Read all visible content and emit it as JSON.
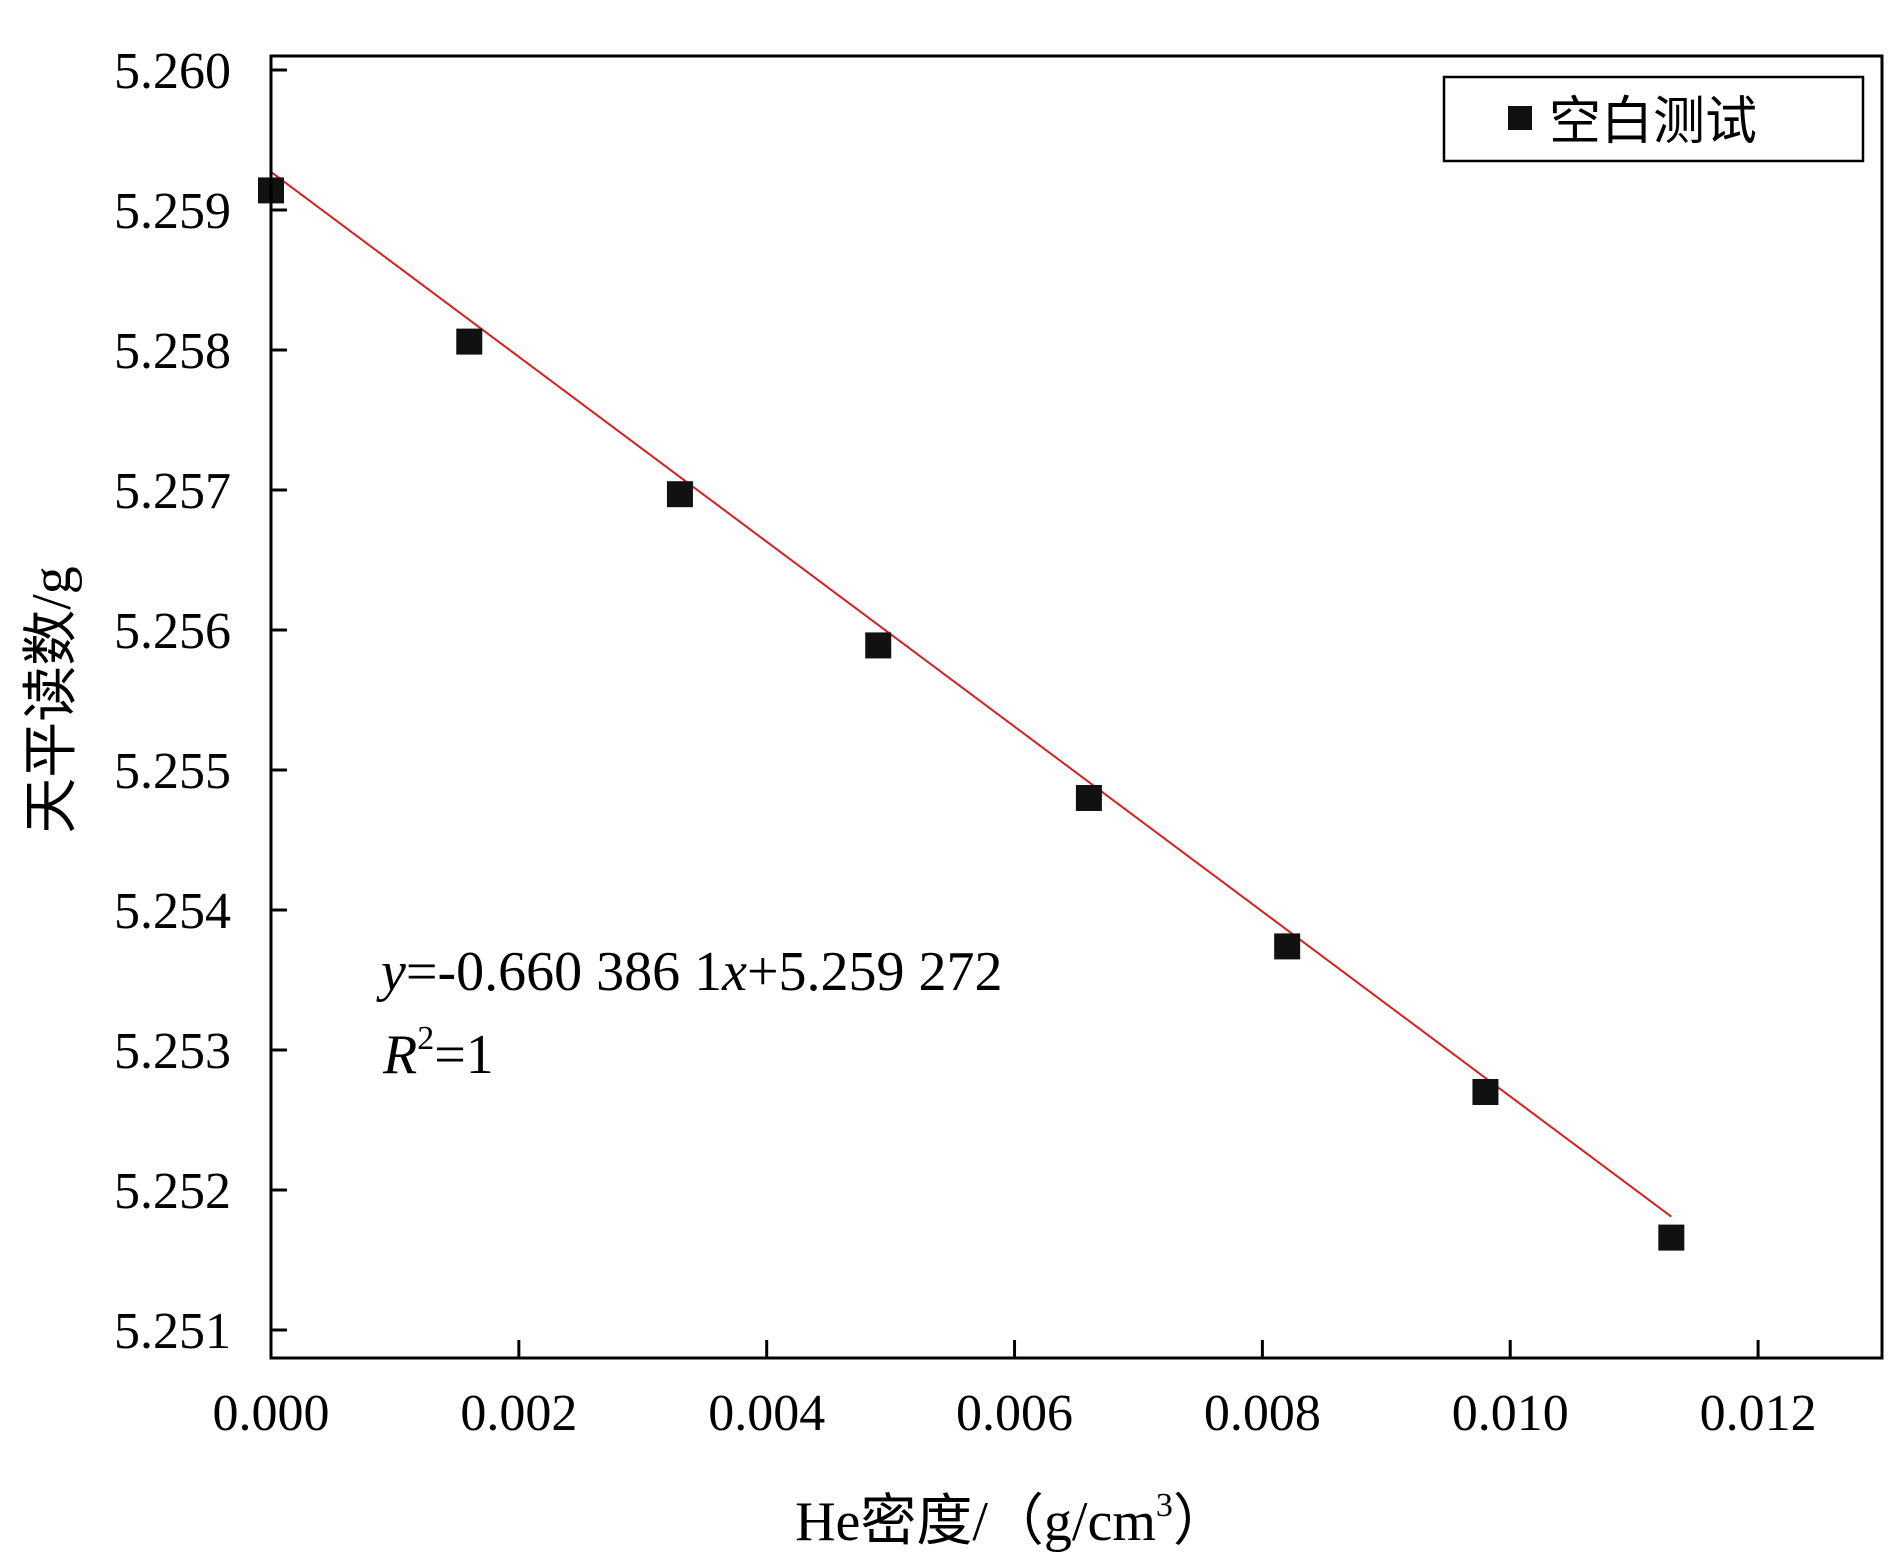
{
  "chart_data": {
    "type": "scatter",
    "xlabel": {
      "prefix": "He密度/（g/cm",
      "sup": "3",
      "suffix": "）"
    },
    "ylabel": "天平读数/g",
    "xlim": [
      0,
      0.013
    ],
    "ylim": [
      5.2508,
      5.2601
    ],
    "xticks": [
      0.0,
      0.002,
      0.004,
      0.006,
      0.008,
      0.01,
      0.012
    ],
    "xtick_labels": [
      "0.000",
      "0.002",
      "0.004",
      "0.006",
      "0.008",
      "0.010",
      "0.012"
    ],
    "yticks": [
      5.251,
      5.252,
      5.253,
      5.254,
      5.255,
      5.256,
      5.257,
      5.258,
      5.259,
      5.26
    ],
    "ytick_labels": [
      "5.251",
      "5.252",
      "5.253",
      "5.254",
      "5.255",
      "5.256",
      "5.257",
      "5.258",
      "5.259",
      "5.260"
    ],
    "series": [
      {
        "name": "空白测试",
        "marker": "square",
        "color": "#111111",
        "x": [
          0.0,
          0.0016,
          0.0033,
          0.0049,
          0.0066,
          0.0082,
          0.0098,
          0.0113
        ],
        "y": [
          5.25914,
          5.25806,
          5.25697,
          5.25589,
          5.2548,
          5.25374,
          5.2527,
          5.25166
        ]
      }
    ],
    "fit": {
      "slope": -0.6603861,
      "intercept": 5.259272,
      "x_range": [
        0.0,
        0.0113
      ],
      "color": "#d62020"
    },
    "annotation": {
      "eq": {
        "y": "y",
        "mid": "=-0.660 386 1",
        "x": "x",
        "tail": "+5.259 272"
      },
      "r2": {
        "R": "R",
        "sup": "2",
        "tail": "=1"
      }
    },
    "legend_position": "top-right",
    "grid": false
  }
}
